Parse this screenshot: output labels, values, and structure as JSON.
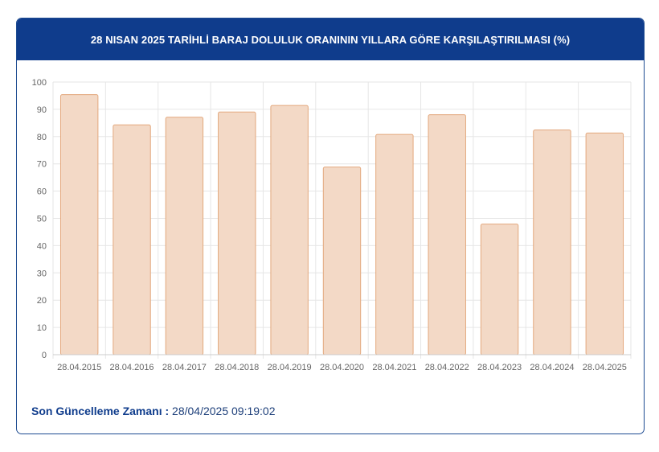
{
  "header": {
    "title": "28 NISAN 2025 TARİHLİ BARAJ DOLULUK ORANININ YILLARA GÖRE KARŞILAŞTIRILMASI (%)"
  },
  "footer": {
    "label": "Son Güncelleme Zamanı :",
    "value": "28/04/2025 09:19:02"
  },
  "colors": {
    "header_bg": "#0f3c8c",
    "bar_fill": "#f3d9c6",
    "bar_stroke": "#e3a87d"
  },
  "chart_data": {
    "type": "bar",
    "categories": [
      "28.04.2015",
      "28.04.2016",
      "28.04.2017",
      "28.04.2018",
      "28.04.2019",
      "28.04.2020",
      "28.04.2021",
      "28.04.2022",
      "28.04.2023",
      "28.04.2024",
      "28.04.2025"
    ],
    "values": [
      95.4,
      84.3,
      87.1,
      89.0,
      91.4,
      68.8,
      80.8,
      88.0,
      47.9,
      82.4,
      81.3
    ],
    "yticks": [
      "0",
      "10",
      "20",
      "30",
      "40",
      "50",
      "60",
      "70",
      "80",
      "90",
      "100"
    ],
    "ylim": [
      0,
      100
    ],
    "grid": true,
    "legend": "none"
  }
}
